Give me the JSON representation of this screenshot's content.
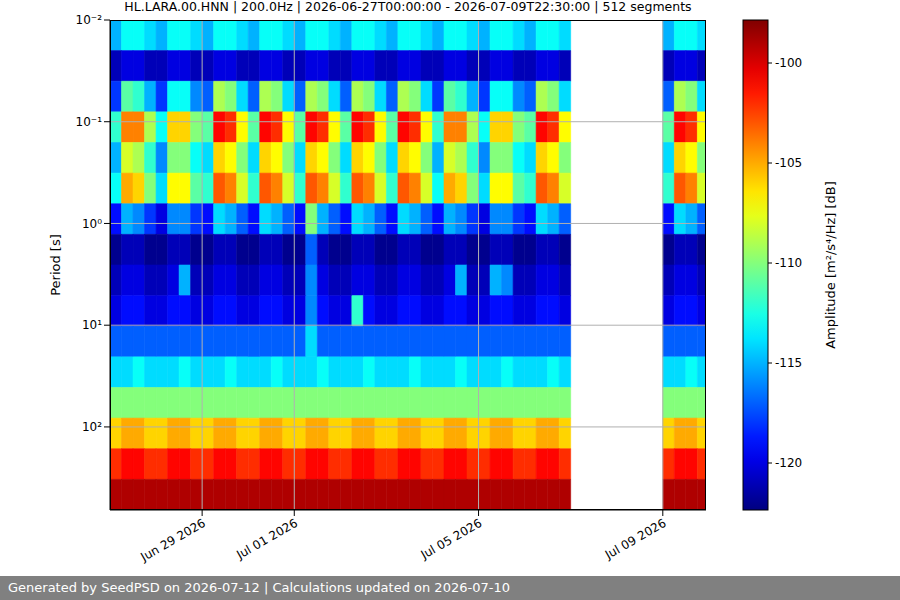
{
  "chart_data": {
    "type": "heatmap",
    "title": "HL.LARA.00.HNN | 200.0Hz | 2026-06-27T00:00:00 - 2026-07-09T22:30:00 | 512 segments",
    "footer": "Generated by SeedPSD on 2026-07-12 | Calculations updated on 2026-07-10",
    "ylabel": "Period [s]",
    "log": "y",
    "grid": true,
    "xlim": [
      0,
      12.9375
    ],
    "xticks": [
      {
        "value": 2,
        "label": "Jun 29 2026"
      },
      {
        "value": 4,
        "label": "Jul 01 2026"
      },
      {
        "value": 8,
        "label": "Jul 05 2026"
      },
      {
        "value": 12,
        "label": "Jul 09 2026"
      }
    ],
    "ylim": [
      0.01,
      655.36
    ],
    "yticks": [
      {
        "value": 0.01,
        "label": "10⁻²"
      },
      {
        "value": 0.1,
        "label": "10⁻¹"
      },
      {
        "value": 1,
        "label": "10⁰"
      },
      {
        "value": 10,
        "label": "10¹"
      },
      {
        "value": 100,
        "label": "10²"
      }
    ],
    "x_edges": [
      0,
      0.25,
      0.5,
      0.75,
      1,
      1.25,
      1.5,
      1.75,
      2,
      2.25,
      2.5,
      2.75,
      3,
      3.25,
      3.5,
      3.75,
      4,
      4.25,
      4.5,
      4.75,
      5,
      5.25,
      5.5,
      5.75,
      6,
      6.25,
      6.5,
      6.75,
      7,
      7.25,
      7.5,
      7.75,
      8,
      8.25,
      8.5,
      8.75,
      9,
      9.25,
      9.5,
      9.75,
      10,
      10.25,
      10.5,
      10.75,
      11,
      11.25,
      11.5,
      11.75,
      12,
      12.25,
      12.5,
      12.75,
      13
    ],
    "y_edges": [
      0.01,
      0.02,
      0.04,
      0.08,
      0.16,
      0.32,
      0.64,
      1.28,
      2.56,
      5.12,
      10.24,
      20.48,
      40.96,
      81.92,
      163.84,
      327.68,
      655.36
    ],
    "cells": [
      [
        -115,
        -113,
        -113,
        -114,
        -115,
        -113,
        -113,
        -114,
        -115,
        -113,
        -113,
        -114,
        -115,
        -113,
        -113,
        -114,
        -115,
        -113,
        -113,
        -114,
        -115,
        -113,
        -113,
        -114,
        -115,
        -113,
        -113,
        -114,
        -115,
        -113,
        -113,
        -114,
        -115,
        -113,
        -113,
        -114,
        -115,
        -113,
        -113,
        -114,
        null,
        null,
        null,
        null,
        null,
        null,
        null,
        null,
        -115,
        -113,
        -113,
        -114
      ],
      [
        -121,
        -120,
        -120,
        -121,
        -121,
        -120,
        -120,
        -121,
        -121,
        -120,
        -120,
        -121,
        -121,
        -120,
        -120,
        -121,
        -121,
        -120,
        -120,
        -121,
        -121,
        -120,
        -120,
        -121,
        -121,
        -120,
        -120,
        -121,
        -121,
        -120,
        -120,
        -121,
        -121,
        -120,
        -120,
        -121,
        -121,
        -120,
        -120,
        -121,
        null,
        null,
        null,
        null,
        null,
        null,
        null,
        null,
        -121,
        -120,
        -120,
        -121
      ],
      [
        -118,
        -111,
        -112,
        -115,
        -118,
        -113,
        -113,
        -116,
        -117,
        -109,
        -110,
        -114,
        -117,
        -109,
        -110,
        -114,
        -117,
        -109,
        -110,
        -114,
        -117,
        -109,
        -110,
        -114,
        -117,
        -109,
        -110,
        -114,
        -118,
        -111,
        -112,
        -115,
        -118,
        -113,
        -113,
        -116,
        -117,
        -109,
        -110,
        -114,
        null,
        null,
        null,
        null,
        null,
        null,
        null,
        null,
        -117,
        -109,
        -110,
        -114
      ],
      [
        -112,
        -104,
        -104,
        -109,
        -113,
        -106,
        -106,
        -110,
        -111,
        -101,
        -102,
        -107,
        -111,
        -101,
        -102,
        -107,
        -111,
        -101,
        -102,
        -107,
        -111,
        -101,
        -102,
        -107,
        -111,
        -101,
        -102,
        -107,
        -112,
        -104,
        -104,
        -109,
        -113,
        -106,
        -106,
        -110,
        -111,
        -101,
        -102,
        -107,
        null,
        null,
        null,
        null,
        null,
        null,
        null,
        null,
        -111,
        -101,
        -102,
        -107
      ],
      [
        -115,
        -108,
        -109,
        -112,
        -116,
        -110,
        -110,
        -113,
        -114,
        -106,
        -107,
        -110,
        -114,
        -106,
        -107,
        -110,
        -114,
        -106,
        -107,
        -110,
        -114,
        -106,
        -107,
        -110,
        -114,
        -106,
        -107,
        -110,
        -115,
        -108,
        -109,
        -112,
        -116,
        -110,
        -110,
        -113,
        -114,
        -106,
        -107,
        -110,
        null,
        null,
        null,
        null,
        null,
        null,
        null,
        null,
        -114,
        -106,
        -107,
        -110
      ],
      [
        -113,
        -105,
        -106,
        -110,
        -114,
        -107,
        -107,
        -111,
        -112,
        -103,
        -104,
        -108,
        -112,
        -103,
        -104,
        -108,
        -112,
        -103,
        -104,
        -108,
        -112,
        -103,
        -104,
        -108,
        -112,
        -103,
        -104,
        -108,
        -113,
        -105,
        -106,
        -110,
        -114,
        -107,
        -107,
        -111,
        -112,
        -103,
        -104,
        -108,
        null,
        null,
        null,
        null,
        null,
        null,
        null,
        null,
        -112,
        -103,
        -104,
        -108
      ],
      [
        -119,
        -115,
        -116,
        -118,
        -120,
        -116,
        -116,
        -118,
        -119,
        -114,
        -115,
        -117,
        -119,
        -114,
        -115,
        -117,
        -119,
        -110,
        -115,
        -117,
        -119,
        -114,
        -115,
        -117,
        -119,
        -114,
        -115,
        -117,
        -119,
        -115,
        -116,
        -118,
        -120,
        -116,
        -116,
        -118,
        -119,
        -114,
        -115,
        -117,
        null,
        null,
        null,
        null,
        null,
        null,
        null,
        null,
        -119,
        -114,
        -115,
        -117
      ],
      [
        -122,
        -121,
        -121,
        -122,
        -122,
        -121,
        -121,
        -122,
        -122,
        -121,
        -121,
        -122,
        -122,
        -121,
        -121,
        -122,
        -122,
        -117,
        -121,
        -122,
        -122,
        -121,
        -121,
        -122,
        -122,
        -121,
        -121,
        -122,
        -122,
        -121,
        -121,
        -122,
        -122,
        -121,
        -121,
        -122,
        -122,
        -121,
        -121,
        -122,
        null,
        null,
        null,
        null,
        null,
        null,
        null,
        null,
        -122,
        -121,
        -121,
        -122
      ],
      [
        -121,
        -120,
        -120,
        -121,
        -121,
        -120,
        -115,
        -121,
        -121,
        -120,
        -120,
        -121,
        -121,
        -120,
        -120,
        -121,
        -121,
        -116,
        -120,
        -121,
        -121,
        -120,
        -120,
        -121,
        -121,
        -120,
        -120,
        -121,
        -121,
        -120,
        -115,
        -121,
        -121,
        -115,
        -116,
        -121,
        -121,
        -120,
        -120,
        -121,
        null,
        null,
        null,
        null,
        null,
        null,
        null,
        null,
        -121,
        -120,
        -120,
        -121
      ],
      [
        -120,
        -119,
        -119,
        -120,
        -120,
        -119,
        -119,
        -120,
        -120,
        -119,
        -119,
        -120,
        -120,
        -119,
        -119,
        -120,
        -120,
        -116,
        -119,
        -120,
        -120,
        -112,
        -119,
        -120,
        -120,
        -119,
        -119,
        -120,
        -120,
        -119,
        -119,
        -120,
        -120,
        -119,
        -119,
        -120,
        -120,
        -119,
        -119,
        -120,
        null,
        null,
        null,
        null,
        null,
        null,
        null,
        null,
        -120,
        -119,
        -119,
        -120
      ],
      [
        -117,
        -117,
        -117,
        -117,
        -117,
        -117,
        -117,
        -117,
        -117,
        -117,
        -117,
        -117,
        -117,
        -117,
        -117,
        -117,
        -117,
        -114,
        -117,
        -117,
        -117,
        -117,
        -117,
        -117,
        -117,
        -117,
        -117,
        -117,
        -117,
        -117,
        -117,
        -117,
        -117,
        -117,
        -117,
        -117,
        -117,
        -117,
        -117,
        -117,
        null,
        null,
        null,
        null,
        null,
        null,
        null,
        null,
        -117,
        -117,
        -117,
        -117
      ],
      [
        -114,
        -114,
        -113,
        -114,
        -114,
        -114,
        -113,
        -114,
        -114,
        -114,
        -113,
        -114,
        -114,
        -114,
        -113,
        -114,
        -114,
        -114,
        -113,
        -114,
        -114,
        -114,
        -113,
        -114,
        -114,
        -114,
        -113,
        -114,
        -114,
        -114,
        -113,
        -114,
        -114,
        -114,
        -113,
        -114,
        -114,
        -114,
        -113,
        -114,
        null,
        null,
        null,
        null,
        null,
        null,
        null,
        null,
        -114,
        -114,
        -113,
        -114
      ],
      [
        -110,
        -110,
        -110,
        -110,
        -110,
        -110,
        -110,
        -110,
        -110,
        -110,
        -110,
        -110,
        -110,
        -110,
        -110,
        -110,
        -110,
        -110,
        -110,
        -110,
        -110,
        -110,
        -110,
        -110,
        -110,
        -110,
        -110,
        -110,
        -110,
        -110,
        -110,
        -110,
        -110,
        -110,
        -110,
        -110,
        -110,
        -110,
        -110,
        -110,
        null,
        null,
        null,
        null,
        null,
        null,
        null,
        null,
        -110,
        -110,
        -110,
        -110
      ],
      [
        -106,
        -105,
        -105,
        -106,
        -106,
        -105,
        -105,
        -106,
        -106,
        -105,
        -105,
        -106,
        -106,
        -105,
        -105,
        -106,
        -106,
        -105,
        -105,
        -106,
        -106,
        -105,
        -105,
        -106,
        -106,
        -105,
        -105,
        -106,
        -106,
        -105,
        -105,
        -106,
        -106,
        -105,
        -105,
        -106,
        -106,
        -105,
        -105,
        -106,
        null,
        null,
        null,
        null,
        null,
        null,
        null,
        null,
        -106,
        -105,
        -105,
        -106
      ],
      [
        -102,
        -101,
        -101,
        -102,
        -102,
        -101,
        -101,
        -102,
        -102,
        -101,
        -101,
        -102,
        -102,
        -101,
        -101,
        -102,
        -102,
        -101,
        -101,
        -102,
        -102,
        -101,
        -101,
        -102,
        -102,
        -101,
        -101,
        -102,
        -102,
        -101,
        -101,
        -102,
        -102,
        -101,
        -101,
        -102,
        -102,
        -101,
        -101,
        -102,
        null,
        null,
        null,
        null,
        null,
        null,
        null,
        null,
        -102,
        -101,
        -101,
        -102
      ],
      [
        -99,
        -99,
        -99,
        -99,
        -99,
        -99,
        -99,
        -99,
        -99,
        -99,
        -99,
        -99,
        -99,
        -99,
        -99,
        -99,
        -99,
        -99,
        -99,
        -99,
        -99,
        -99,
        -99,
        -99,
        -99,
        -99,
        -99,
        -99,
        -99,
        -99,
        -99,
        -99,
        -99,
        -99,
        -99,
        -99,
        -99,
        -99,
        -99,
        -99,
        null,
        null,
        null,
        null,
        null,
        null,
        null,
        null,
        -99,
        -99,
        -99,
        -99
      ]
    ],
    "colorbar_label": "Amplitude [m²/s⁴/Hz] [dB]",
    "clim": [
      -122.35,
      -97.85
    ],
    "cticks": [
      -120,
      -115,
      -110,
      -105,
      -100
    ]
  }
}
